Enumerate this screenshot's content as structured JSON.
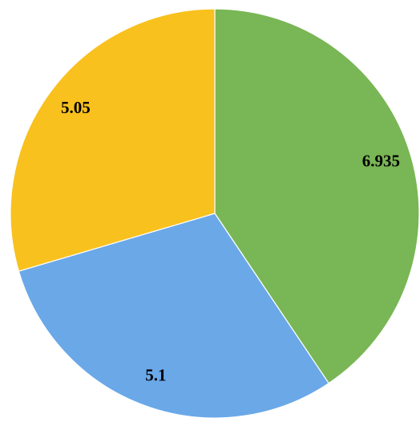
{
  "chart_data": {
    "type": "pie",
    "categories": [
      null,
      null,
      null
    ],
    "values": [
      6.935,
      5.1,
      5.05
    ],
    "colors": [
      "#79b655",
      "#6aa8e8",
      "#f8c11e"
    ],
    "start_angle": 0,
    "direction": "clockwise"
  }
}
